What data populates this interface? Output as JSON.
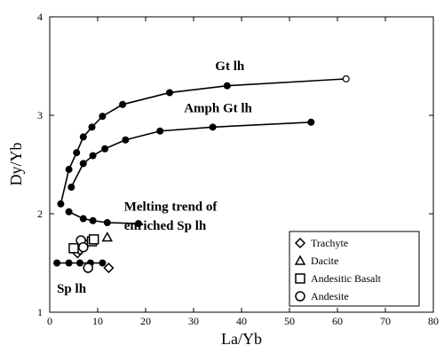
{
  "chart_data": {
    "type": "scatter",
    "xlabel": "La/Yb",
    "ylabel": "Dy/Yb",
    "xlim": [
      0,
      80
    ],
    "ylim": [
      1,
      4
    ],
    "xticks": [
      "0",
      "10",
      "20",
      "30",
      "40",
      "50",
      "60",
      "70",
      "80"
    ],
    "yticks": [
      "1",
      "2",
      "3",
      "4"
    ],
    "grid": false,
    "curves": [
      {
        "label": "Gt lh",
        "points": [
          [
            2.3,
            2.1
          ],
          [
            4.0,
            2.45
          ],
          [
            5.6,
            2.62
          ],
          [
            7.0,
            2.78
          ],
          [
            8.8,
            2.88
          ],
          [
            11.0,
            2.99
          ],
          [
            15.2,
            3.11
          ],
          [
            25.0,
            3.23
          ],
          [
            37.0,
            3.3
          ],
          [
            61.8,
            3.37
          ]
        ],
        "open_last": true
      },
      {
        "label": "Amph Gt lh",
        "points": [
          [
            4.5,
            2.27
          ],
          [
            7.0,
            2.51
          ],
          [
            9.0,
            2.59
          ],
          [
            11.5,
            2.66
          ],
          [
            15.8,
            2.75
          ],
          [
            23.0,
            2.84
          ],
          [
            34.0,
            2.88
          ],
          [
            54.5,
            2.93
          ]
        ],
        "open_last": false
      },
      {
        "label": "Melting trend of enriched Sp lh",
        "points": [
          [
            4.0,
            2.02
          ],
          [
            7.0,
            1.95
          ],
          [
            9.0,
            1.93
          ],
          [
            12.0,
            1.91
          ],
          [
            18.5,
            1.9
          ]
        ],
        "open_last": false
      },
      {
        "label": "Sp lh",
        "points": [
          [
            1.5,
            1.5
          ],
          [
            4.0,
            1.5
          ],
          [
            6.3,
            1.5
          ],
          [
            8.5,
            1.5
          ],
          [
            11.0,
            1.5
          ]
        ],
        "open_last": false
      }
    ],
    "sample_series": [
      {
        "name": "Trachyte",
        "marker": "diamond",
        "points": [
          [
            5.8,
            1.6
          ],
          [
            6.3,
            1.63
          ],
          [
            7.0,
            1.66
          ],
          [
            7.3,
            1.7
          ],
          [
            12.3,
            1.45
          ]
        ]
      },
      {
        "name": "Dacite",
        "marker": "triangle",
        "points": [
          [
            12.0,
            1.76
          ]
        ]
      },
      {
        "name": "Andesitic Basalt",
        "marker": "square",
        "points": [
          [
            5.0,
            1.65
          ],
          [
            8.8,
            1.72
          ],
          [
            9.2,
            1.74
          ]
        ]
      },
      {
        "name": "Andesite",
        "marker": "circle",
        "points": [
          [
            6.5,
            1.73
          ],
          [
            7.0,
            1.66
          ],
          [
            8.0,
            1.45
          ]
        ]
      }
    ],
    "legend": {
      "placement": "bottom-right",
      "items": [
        {
          "name": "Trachyte",
          "marker": "diamond"
        },
        {
          "name": "Dacite",
          "marker": "triangle"
        },
        {
          "name": "Andesitic Basalt",
          "marker": "square"
        },
        {
          "name": "Andesite",
          "marker": "circle"
        }
      ]
    },
    "annotations": [
      {
        "text": "Gt lh",
        "x": 34.5,
        "y": 3.46
      },
      {
        "text": "Amph Gt lh",
        "x": 28.0,
        "y": 3.03
      },
      {
        "text": "Melting trend of",
        "x": 15.5,
        "y": 2.03
      },
      {
        "text": "enriched Sp lh",
        "x": 15.5,
        "y": 1.84
      },
      {
        "text": "Sp lh",
        "x": 1.5,
        "y": 1.2
      }
    ]
  }
}
